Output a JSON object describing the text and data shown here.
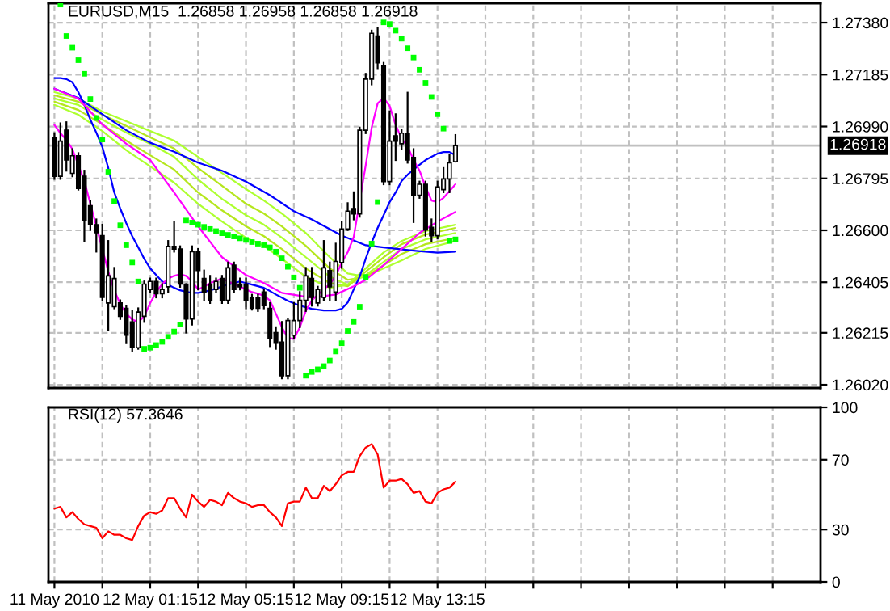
{
  "chart_data": [
    {
      "type": "candlestick",
      "title": "EURUSD,M15  1.26858 1.26958 1.26858 1.26918",
      "x": [
        "2010-05-11T21:15",
        "2010-05-11T21:30",
        "2010-05-11T21:45",
        "2010-05-11T22:00",
        "2010-05-11T22:15",
        "2010-05-11T22:30",
        "2010-05-11T22:45",
        "2010-05-11T23:00",
        "2010-05-11T23:15",
        "2010-05-11T23:30",
        "2010-05-11T23:45",
        "2010-05-12T00:00",
        "2010-05-12T00:15",
        "2010-05-12T00:30",
        "2010-05-12T00:45",
        "2010-05-12T01:00",
        "2010-05-12T01:15",
        "2010-05-12T01:30",
        "2010-05-12T01:45",
        "2010-05-12T02:00",
        "2010-05-12T02:15",
        "2010-05-12T02:30",
        "2010-05-12T02:45",
        "2010-05-12T03:00",
        "2010-05-12T03:15",
        "2010-05-12T03:30",
        "2010-05-12T03:45",
        "2010-05-12T04:00",
        "2010-05-12T04:15",
        "2010-05-12T04:30",
        "2010-05-12T04:45",
        "2010-05-12T05:00",
        "2010-05-12T05:15",
        "2010-05-12T05:30",
        "2010-05-12T05:45",
        "2010-05-12T06:00",
        "2010-05-12T06:15",
        "2010-05-12T06:30",
        "2010-05-12T06:45",
        "2010-05-12T07:00",
        "2010-05-12T07:15",
        "2010-05-12T07:30",
        "2010-05-12T07:45",
        "2010-05-12T08:00",
        "2010-05-12T08:15",
        "2010-05-12T08:30",
        "2010-05-12T08:45",
        "2010-05-12T09:00",
        "2010-05-12T09:15",
        "2010-05-12T09:30",
        "2010-05-12T09:45",
        "2010-05-12T10:00",
        "2010-05-12T10:15",
        "2010-05-12T10:30",
        "2010-05-12T10:45",
        "2010-05-12T11:00",
        "2010-05-12T11:15",
        "2010-05-12T11:30",
        "2010-05-12T11:45",
        "2010-05-12T12:00",
        "2010-05-12T12:15",
        "2010-05-12T12:30",
        "2010-05-12T12:45",
        "2010-05-12T13:00",
        "2010-05-12T13:15",
        "2010-05-12T13:30",
        "2010-05-12T13:45",
        "2010-05-12T14:00"
      ],
      "ohlc": [
        [
          1.26949,
          1.26965,
          1.26793,
          1.26803
        ],
        [
          1.26803,
          1.27002,
          1.26793,
          1.26935
        ],
        [
          1.26976,
          1.27006,
          1.26824,
          1.26864
        ],
        [
          1.26814,
          1.26905,
          1.26803,
          1.2688
        ],
        [
          1.2688,
          1.2689,
          1.26753,
          1.26757
        ],
        [
          1.26803,
          1.26824,
          1.2656,
          1.26637
        ],
        [
          1.26692,
          1.26712,
          1.26601,
          1.26621
        ],
        [
          1.26621,
          1.26641,
          1.2652,
          1.26591
        ],
        [
          1.2658,
          1.26621,
          1.26337,
          1.26348
        ],
        [
          1.26327,
          1.2656,
          1.26226,
          1.26429
        ],
        [
          1.26313,
          1.26459,
          1.26307,
          1.26419
        ],
        [
          1.26327,
          1.26337,
          1.26267,
          1.26277
        ],
        [
          1.26307,
          1.26317,
          1.26176,
          1.26206
        ],
        [
          1.26256,
          1.26297,
          1.26145,
          1.26159
        ],
        [
          1.26159,
          1.26307,
          1.26155,
          1.26293
        ],
        [
          1.26277,
          1.26408,
          1.26256,
          1.26398
        ],
        [
          1.26378,
          1.26419,
          1.26368,
          1.26408
        ],
        [
          1.26408,
          1.26419,
          1.26348,
          1.26362
        ],
        [
          1.26362,
          1.26398,
          1.26348,
          1.26378
        ],
        [
          1.26388,
          1.2656,
          1.26368,
          1.2654
        ],
        [
          1.2654,
          1.26631,
          1.2652,
          1.2653
        ],
        [
          1.2653,
          1.2654,
          1.26388,
          1.26398
        ],
        [
          1.26398,
          1.26398,
          1.26216,
          1.26267
        ],
        [
          1.26267,
          1.2654,
          1.26246,
          1.2652
        ],
        [
          1.2652,
          1.2653,
          1.26378,
          1.26449
        ],
        [
          1.26419,
          1.26449,
          1.26337,
          1.26368
        ],
        [
          1.26398,
          1.26429,
          1.26327,
          1.26337
        ],
        [
          1.26378,
          1.26419,
          1.26368,
          1.26408
        ],
        [
          1.26419,
          1.26429,
          1.26327,
          1.26337
        ],
        [
          1.26337,
          1.26479,
          1.26327,
          1.26459
        ],
        [
          1.26469,
          1.26479,
          1.26368,
          1.26378
        ],
        [
          1.26398,
          1.26419,
          1.26378,
          1.26388
        ],
        [
          1.26398,
          1.26419,
          1.26307,
          1.26337
        ],
        [
          1.26348,
          1.26358,
          1.26302,
          1.26307
        ],
        [
          1.26348,
          1.26358,
          1.26297,
          1.26307
        ],
        [
          1.26368,
          1.26378,
          1.26307,
          1.26317
        ],
        [
          1.26307,
          1.26327,
          1.26165,
          1.26196
        ],
        [
          1.26216,
          1.26236,
          1.26155,
          1.26176
        ],
        [
          1.2618,
          1.26256,
          1.26044,
          1.26054
        ],
        [
          1.26054,
          1.26267,
          1.26044,
          1.26261
        ],
        [
          1.26206,
          1.26327,
          1.26196,
          1.26261
        ],
        [
          1.26261,
          1.26368,
          1.26236,
          1.26337
        ],
        [
          1.26337,
          1.26459,
          1.26297,
          1.26429
        ],
        [
          1.26419,
          1.26459,
          1.26317,
          1.26348
        ],
        [
          1.26327,
          1.26388,
          1.26317,
          1.26378
        ],
        [
          1.26348,
          1.2656,
          1.26337,
          1.26459
        ],
        [
          1.26449,
          1.26479,
          1.26337,
          1.26388
        ],
        [
          1.26368,
          1.2655,
          1.26337,
          1.26483
        ],
        [
          1.26479,
          1.26631,
          1.26459,
          1.26605
        ],
        [
          1.26605,
          1.26702,
          1.26601,
          1.26672
        ],
        [
          1.26682,
          1.26743,
          1.26641,
          1.26662
        ],
        [
          1.26662,
          1.26986,
          1.26651,
          1.26976
        ],
        [
          1.26976,
          1.27188,
          1.26965,
          1.27168
        ],
        [
          1.27168,
          1.2735,
          1.27148,
          1.2734
        ],
        [
          1.2733,
          1.27361,
          1.27209,
          1.27229
        ],
        [
          1.27219,
          1.27229,
          1.26773,
          1.26783
        ],
        [
          1.26783,
          1.27047,
          1.26773,
          1.26935
        ],
        [
          1.26955,
          1.27036,
          1.26864,
          1.26935
        ],
        [
          1.26925,
          1.26976,
          1.26905,
          1.26965
        ],
        [
          1.26965,
          1.27117,
          1.26854,
          1.26864
        ],
        [
          1.26874,
          1.26905,
          1.26631,
          1.26732
        ],
        [
          1.26732,
          1.26783,
          1.26722,
          1.26773
        ],
        [
          1.26773,
          1.26783,
          1.2658,
          1.26601
        ],
        [
          1.26611,
          1.26641,
          1.2656,
          1.2658
        ],
        [
          1.2658,
          1.26783,
          1.2657,
          1.26763
        ],
        [
          1.26753,
          1.26834,
          1.26743,
          1.26793
        ],
        [
          1.26793,
          1.26884,
          1.26743,
          1.26854
        ],
        [
          1.26858,
          1.26958,
          1.26858,
          1.26918
        ]
      ],
      "colors": [
        "#000000",
        "#ffffff",
        "#000000",
        "#ffffff",
        "#000000",
        "#000000",
        "#000000",
        "#000000",
        "#000000",
        "#ffffff",
        "#ffffff",
        "#000000",
        "#000000",
        "#000000",
        "#ffffff",
        "#ffffff",
        "#ffffff",
        "#000000",
        "#ffffff",
        "#ffffff",
        "#000000",
        "#000000",
        "#000000",
        "#ffffff",
        "#000000",
        "#000000",
        "#000000",
        "#ffffff",
        "#000000",
        "#ffffff",
        "#000000",
        "#000000",
        "#000000",
        "#000000",
        "#000000",
        "#000000",
        "#000000",
        "#000000",
        "#000000",
        "#ffffff",
        "#ffffff",
        "#ffffff",
        "#ffffff",
        "#000000",
        "#ffffff",
        "#ffffff",
        "#000000",
        "#ffffff",
        "#ffffff",
        "#ffffff",
        "#000000",
        "#ffffff",
        "#ffffff",
        "#ffffff",
        "#000000",
        "#000000",
        "#ffffff",
        "#000000",
        "#ffffff",
        "#000000",
        "#000000",
        "#ffffff",
        "#000000",
        "#000000",
        "#ffffff",
        "#ffffff",
        "#ffffff",
        "#ffffff"
      ],
      "series": [
        {
          "type": "line",
          "color": "#adff2f",
          "x": [
            "2010-05-11T21:15",
            "2010-05-11T22:15",
            "2010-05-11T23:15",
            "2010-05-12T00:15",
            "2010-05-12T01:15",
            "2010-05-12T02:15",
            "2010-05-12T03:15",
            "2010-05-12T04:15",
            "2010-05-12T05:15",
            "2010-05-12T06:00",
            "2010-05-12T06:45",
            "2010-05-12T07:45",
            "2010-05-12T08:45",
            "2010-05-12T09:30",
            "2010-05-12T10:15",
            "2010-05-12T11:00",
            "2010-05-12T11:45",
            "2010-05-12T12:45",
            "2010-05-12T14:00"
          ],
          "values": [
            1.27119,
            1.27095,
            1.27046,
            1.2701,
            1.26973,
            1.26937,
            1.26876,
            1.26815,
            1.26755,
            1.26712,
            1.26663,
            1.2659,
            1.26499,
            1.26438,
            1.26426,
            1.26457,
            1.26487,
            1.2653,
            1.2656
          ]
        },
        {
          "type": "line",
          "color": "#b5e61d",
          "x": [
            "2010-05-11T21:15",
            "2010-05-11T22:15",
            "2010-05-11T23:15",
            "2010-05-12T00:15",
            "2010-05-12T01:15",
            "2010-05-12T02:15",
            "2010-05-12T03:15",
            "2010-05-12T04:15",
            "2010-05-12T05:15",
            "2010-05-12T06:00",
            "2010-05-12T06:45",
            "2010-05-12T07:45",
            "2010-05-12T08:45",
            "2010-05-12T09:30",
            "2010-05-12T10:15",
            "2010-05-12T11:00",
            "2010-05-12T11:45",
            "2010-05-12T12:45",
            "2010-05-12T14:00"
          ],
          "values": [
            1.27107,
            1.27083,
            1.27034,
            1.26992,
            1.26949,
            1.26907,
            1.26834,
            1.26767,
            1.267,
            1.26663,
            1.26615,
            1.26542,
            1.26457,
            1.26414,
            1.26426,
            1.26469,
            1.26511,
            1.26548,
            1.26572
          ]
        },
        {
          "type": "line",
          "color": "#adff2f",
          "x": [
            "2010-05-11T21:15",
            "2010-05-11T22:15",
            "2010-05-11T23:15",
            "2010-05-12T00:15",
            "2010-05-12T01:15",
            "2010-05-12T02:15",
            "2010-05-12T03:15",
            "2010-05-12T04:15",
            "2010-05-12T05:15",
            "2010-05-12T06:00",
            "2010-05-12T06:45",
            "2010-05-12T07:45",
            "2010-05-12T08:45",
            "2010-05-12T09:30",
            "2010-05-12T10:15",
            "2010-05-12T11:00",
            "2010-05-12T11:45",
            "2010-05-12T12:45",
            "2010-05-12T14:00"
          ],
          "values": [
            1.27095,
            1.27071,
            1.27016,
            1.26967,
            1.26925,
            1.26876,
            1.26791,
            1.26718,
            1.26657,
            1.26621,
            1.26572,
            1.26499,
            1.26426,
            1.26396,
            1.26432,
            1.26481,
            1.2653,
            1.26566,
            1.2659
          ]
        },
        {
          "type": "line",
          "color": "#b5e61d",
          "x": [
            "2010-05-11T21:15",
            "2010-05-11T22:15",
            "2010-05-11T23:15",
            "2010-05-12T00:15",
            "2010-05-12T01:15",
            "2010-05-12T02:15",
            "2010-05-12T03:15",
            "2010-05-12T04:15",
            "2010-05-12T05:15",
            "2010-05-12T06:00",
            "2010-05-12T06:45",
            "2010-05-12T07:45",
            "2010-05-12T08:45",
            "2010-05-12T09:30",
            "2010-05-12T10:15",
            "2010-05-12T11:00",
            "2010-05-12T11:45",
            "2010-05-12T12:45",
            "2010-05-12T14:00"
          ],
          "values": [
            1.27083,
            1.27052,
            1.26998,
            1.26937,
            1.26882,
            1.26828,
            1.26742,
            1.26675,
            1.26615,
            1.26578,
            1.2653,
            1.26457,
            1.26402,
            1.2639,
            1.26445,
            1.26499,
            1.26548,
            1.26584,
            1.26609
          ]
        },
        {
          "type": "line",
          "color": "#adff2f",
          "x": [
            "2010-05-11T21:15",
            "2010-05-11T22:15",
            "2010-05-11T23:15",
            "2010-05-12T00:15",
            "2010-05-12T01:15",
            "2010-05-12T02:15",
            "2010-05-12T03:15",
            "2010-05-12T04:15",
            "2010-05-12T05:15",
            "2010-05-12T06:00",
            "2010-05-12T06:45",
            "2010-05-12T07:45",
            "2010-05-12T08:45",
            "2010-05-12T09:30",
            "2010-05-12T10:15",
            "2010-05-12T11:00",
            "2010-05-12T11:45",
            "2010-05-12T12:45",
            "2010-05-12T14:00"
          ],
          "values": [
            1.27071,
            1.27034,
            1.26973,
            1.26901,
            1.2684,
            1.26779,
            1.267,
            1.26633,
            1.26572,
            1.26542,
            1.26493,
            1.26426,
            1.26384,
            1.26396,
            1.26457,
            1.26517,
            1.2656,
            1.26597,
            1.26621
          ]
        },
        {
          "type": "line",
          "color": "#0000ff",
          "x": [
            "2010-05-11T21:15",
            "2010-05-11T22:15",
            "2010-05-11T23:15",
            "2010-05-12T00:15",
            "2010-05-12T01:15",
            "2010-05-12T02:15",
            "2010-05-12T03:15",
            "2010-05-12T04:15",
            "2010-05-12T05:15",
            "2010-05-12T06:15",
            "2010-05-12T07:15",
            "2010-05-12T08:00",
            "2010-05-12T09:15",
            "2010-05-12T10:15",
            "2010-05-12T11:00",
            "2010-05-12T12:15",
            "2010-05-12T13:15",
            "2010-05-12T14:00"
          ],
          "values": [
            1.27132,
            1.27097,
            1.27036,
            1.26976,
            1.26929,
            1.26895,
            1.26854,
            1.26824,
            1.26783,
            1.26732,
            1.26672,
            1.26641,
            1.2658,
            1.26544,
            1.26536,
            1.26524,
            1.26516,
            1.2652
          ]
        },
        {
          "type": "line",
          "color": "#0000ff",
          "values": [
            1.27172,
            1.27172,
            1.27168,
            1.27156,
            1.27119,
            1.27071,
            1.27016,
            1.26967,
            1.26913,
            1.26834,
            1.26742,
            1.26682,
            1.26627,
            1.26578,
            1.26536,
            1.26493,
            1.26457,
            1.26432,
            1.26408,
            1.26396,
            1.26384,
            1.26375,
            1.26369,
            1.26365,
            1.26365,
            1.26369,
            1.26375,
            1.26381,
            1.2639,
            1.26396,
            1.26402,
            1.26408,
            1.26402,
            1.26396,
            1.2639,
            1.26384,
            1.26372,
            1.26359,
            1.26347,
            1.26335,
            1.26326,
            1.26317,
            1.26311,
            1.26305,
            1.26302,
            1.26299,
            1.26299,
            1.26299,
            1.26305,
            1.26329,
            1.26378,
            1.26426,
            1.26493,
            1.26554,
            1.26609,
            1.26657,
            1.26706,
            1.26742,
            1.26785,
            1.26809,
            1.26828,
            1.26846,
            1.26864,
            1.26876,
            1.26888,
            1.26894,
            1.26894,
            1.26882
          ]
        },
        {
          "type": "line",
          "color": "#ff00ff",
          "x": [
            "2010-05-11T21:15",
            "2010-05-11T22:15",
            "2010-05-11T23:15",
            "2010-05-12T00:15",
            "2010-05-12T01:15",
            "2010-05-12T02:15",
            "2010-05-12T03:15",
            "2010-05-12T04:15",
            "2010-05-12T05:15",
            "2010-05-12T06:00",
            "2010-05-12T06:45",
            "2010-05-12T08:00",
            "2010-05-12T09:00",
            "2010-05-12T09:45",
            "2010-05-12T10:15",
            "2010-05-12T11:00",
            "2010-05-12T11:45",
            "2010-05-12T12:30",
            "2010-05-12T13:15",
            "2010-05-12T14:00"
          ],
          "values": [
            1.27132,
            1.27095,
            1.26998,
            1.26925,
            1.26864,
            1.26742,
            1.26615,
            1.26499,
            1.26432,
            1.26402,
            1.26365,
            1.26347,
            1.26359,
            1.2639,
            1.26414,
            1.26469,
            1.2653,
            1.2659,
            1.26633,
            1.26669
          ]
        },
        {
          "type": "line",
          "color": "#ff00ff",
          "x": [
            "2010-05-11T21:15",
            "2010-05-11T21:30",
            "2010-05-11T21:45",
            "2010-05-11T22:00",
            "2010-05-11T22:15",
            "2010-05-11T22:30",
            "2010-05-11T22:45",
            "2010-05-11T23:00",
            "2010-05-11T23:30",
            "2010-05-11T23:45",
            "2010-05-12T00:00",
            "2010-05-12T00:15",
            "2010-05-12T00:30",
            "2010-05-12T00:45",
            "2010-05-12T01:00",
            "2010-05-12T01:15",
            "2010-05-12T01:30",
            "2010-05-12T01:45",
            "2010-05-12T02:00",
            "2010-05-12T02:15",
            "2010-05-12T02:30",
            "2010-05-12T02:45",
            "2010-05-12T03:00",
            "2010-05-12T03:15",
            "2010-05-12T03:30",
            "2010-05-12T03:45",
            "2010-05-12T04:00",
            "2010-05-12T04:15",
            "2010-05-12T04:30",
            "2010-05-12T04:45",
            "2010-05-12T05:00",
            "2010-05-12T05:15",
            "2010-05-12T05:30",
            "2010-05-12T05:45",
            "2010-05-12T06:00",
            "2010-05-12T06:15",
            "2010-05-12T06:30",
            "2010-05-12T06:45",
            "2010-05-12T07:00",
            "2010-05-12T07:15",
            "2010-05-12T07:30",
            "2010-05-12T07:45",
            "2010-05-12T08:00",
            "2010-05-12T08:15",
            "2010-05-12T08:30",
            "2010-05-12T08:45",
            "2010-05-12T09:00",
            "2010-05-12T09:15",
            "2010-05-12T09:30",
            "2010-05-12T09:45",
            "2010-05-12T10:15",
            "2010-05-12T10:30",
            "2010-05-12T10:45",
            "2010-05-12T11:00",
            "2010-05-12T11:15",
            "2010-05-12T11:30",
            "2010-05-12T11:45",
            "2010-05-12T12:00",
            "2010-05-12T12:15",
            "2010-05-12T12:30",
            "2010-05-12T12:45",
            "2010-05-12T13:00",
            "2010-05-12T13:15",
            "2010-05-12T13:30",
            "2010-05-12T13:45",
            "2010-05-12T14:00"
          ],
          "values": [
            1.26996,
            1.26965,
            1.2694,
            1.26905,
            1.26845,
            1.26785,
            1.267,
            1.26615,
            1.26445,
            1.26375,
            1.26323,
            1.26287,
            1.26265,
            1.26255,
            1.26277,
            1.26327,
            1.26368,
            1.26398,
            1.26419,
            1.26429,
            1.26435,
            1.26429,
            1.26408,
            1.26378,
            1.26388,
            1.26402,
            1.2641,
            1.26419,
            1.26408,
            1.26398,
            1.26388,
            1.26378,
            1.26368,
            1.26362,
            1.26354,
            1.26337,
            1.26287,
            1.26236,
            1.26196,
            1.26192,
            1.26236,
            1.26297,
            1.26337,
            1.26358,
            1.26378,
            1.26398,
            1.26429,
            1.26479,
            1.26518,
            1.26575,
            1.26844,
            1.26986,
            1.27077,
            1.27097,
            1.27067,
            1.26996,
            1.26945,
            1.26915,
            1.26864,
            1.26824,
            1.26763,
            1.26712,
            1.26706,
            1.26722,
            1.26747,
            1.26773
          ]
        },
        {
          "type": "scatter",
          "color": "#00ff00",
          "marker": "square",
          "values": [
            null,
            1.27448,
            1.2733,
            1.27286,
            1.27239,
            1.27188,
            1.27093,
            1.27022,
            1.26941,
            1.2682,
            1.2671,
            1.26619,
            1.26544,
            1.26479,
            1.26408,
            1.26155,
            1.26159,
            1.26169,
            1.26181,
            1.262,
            1.2622,
            1.26246,
            1.26637,
            1.26629,
            1.26621,
            1.26613,
            1.26605,
            1.26597,
            1.26589,
            1.26583,
            1.26577,
            1.2657,
            1.26564,
            1.26556,
            1.2655,
            1.26544,
            1.26536,
            1.2652,
            1.26495,
            1.26463,
            1.26423,
            1.26384,
            1.26054,
            1.26068,
            1.26078,
            1.2609,
            1.26111,
            1.26145,
            1.26176,
            1.26222,
            1.26256,
            1.26313,
            1.26425,
            1.2655,
            1.26706,
            1.27381,
            1.27375,
            1.2735,
            1.2732,
            1.27284,
            1.27249,
            1.27203,
            1.27154,
            1.27101,
            1.27036,
            1.26982,
            1.2656,
            1.26566
          ]
        }
      ],
      "xlim": [
        "2010-05-11T21:00",
        "2010-05-13T05:15"
      ],
      "xticks": [
        {
          "value": "2010-05-11T21:15",
          "label": null
        },
        {
          "value": "2010-05-11T23:15",
          "label": null
        },
        {
          "value": "2010-05-12T01:15",
          "label": null
        },
        {
          "value": "2010-05-12T03:15",
          "label": null
        },
        {
          "value": "2010-05-12T05:15",
          "label": null
        },
        {
          "value": "2010-05-12T07:15",
          "label": null
        },
        {
          "value": "2010-05-12T09:15",
          "label": null
        },
        {
          "value": "2010-05-12T11:15",
          "label": null
        },
        {
          "value": "2010-05-12T13:15",
          "label": null
        },
        {
          "value": "2010-05-12T15:15",
          "label": null
        },
        {
          "value": "2010-05-12T17:15",
          "label": null
        },
        {
          "value": "2010-05-12T19:15",
          "label": null
        },
        {
          "value": "2010-05-12T21:15",
          "label": null
        },
        {
          "value": "2010-05-12T23:15",
          "label": null
        },
        {
          "value": "2010-05-13T01:15",
          "label": null
        },
        {
          "value": "2010-05-13T03:15",
          "label": null
        }
      ],
      "ylim": [
        1.26008,
        1.27453
      ],
      "yticks": [
        {
          "value": 1.2738,
          "label": "1.27380"
        },
        1.27185,
        {
          "value": 1.2699,
          "label": "1.26990"
        },
        1.26795,
        {
          "value": 1.266,
          "label": "1.26600"
        },
        1.26405,
        1.26215,
        {
          "value": 1.2602,
          "label": "1.26020"
        }
      ],
      "ref_lines": [
        {
          "axis": "y",
          "value": 1.26918,
          "label": "1.26918",
          "color": "#c0c0c0"
        }
      ],
      "grid": true,
      "tick_labels": "y"
    },
    {
      "type": "line",
      "title": "RSI(12) 57.3646",
      "x": [
        "2010-05-11T21:15",
        "2010-05-11T21:30",
        "2010-05-11T21:45",
        "2010-05-11T22:00",
        "2010-05-11T22:15",
        "2010-05-11T22:30",
        "2010-05-11T22:45",
        "2010-05-11T23:00",
        "2010-05-11T23:15",
        "2010-05-11T23:30",
        "2010-05-11T23:45",
        "2010-05-12T00:00",
        "2010-05-12T00:15",
        "2010-05-12T00:30",
        "2010-05-12T00:45",
        "2010-05-12T01:00",
        "2010-05-12T01:15",
        "2010-05-12T01:30",
        "2010-05-12T01:45",
        "2010-05-12T02:00",
        "2010-05-12T02:15",
        "2010-05-12T02:30",
        "2010-05-12T02:45",
        "2010-05-12T03:00",
        "2010-05-12T03:15",
        "2010-05-12T03:30",
        "2010-05-12T03:45",
        "2010-05-12T04:00",
        "2010-05-12T04:15",
        "2010-05-12T04:30",
        "2010-05-12T04:45",
        "2010-05-12T05:00",
        "2010-05-12T05:15",
        "2010-05-12T05:30",
        "2010-05-12T05:45",
        "2010-05-12T06:00",
        "2010-05-12T06:15",
        "2010-05-12T06:30",
        "2010-05-12T06:45",
        "2010-05-12T07:00",
        "2010-05-12T07:15",
        "2010-05-12T07:30",
        "2010-05-12T07:45",
        "2010-05-12T08:00",
        "2010-05-12T08:15",
        "2010-05-12T08:30",
        "2010-05-12T08:45",
        "2010-05-12T09:00",
        "2010-05-12T09:15",
        "2010-05-12T09:30",
        "2010-05-12T09:45",
        "2010-05-12T10:00",
        "2010-05-12T10:15",
        "2010-05-12T10:30",
        "2010-05-12T10:45",
        "2010-05-12T11:00",
        "2010-05-12T11:15",
        "2010-05-12T11:30",
        "2010-05-12T11:45",
        "2010-05-12T12:00",
        "2010-05-12T12:15",
        "2010-05-12T12:30",
        "2010-05-12T12:45",
        "2010-05-12T13:00",
        "2010-05-12T13:15",
        "2010-05-12T13:30",
        "2010-05-12T13:45",
        "2010-05-12T14:00"
      ],
      "series": [
        {
          "color": "#ff0000",
          "values": [
            42,
            43,
            37,
            40,
            36,
            33,
            32,
            31,
            25,
            29,
            27,
            27,
            25,
            24,
            32,
            38,
            40,
            39,
            41,
            48,
            48,
            42,
            37,
            50,
            46,
            43,
            47,
            46,
            44,
            51,
            48,
            46,
            45,
            43,
            44,
            44,
            40,
            37,
            32,
            45,
            46,
            46,
            54,
            48,
            48,
            55,
            52,
            56,
            61,
            63,
            63,
            72,
            77,
            79,
            73,
            54,
            58,
            58,
            59,
            56,
            51,
            52,
            46,
            45,
            51,
            53,
            54,
            57.3646
          ]
        }
      ],
      "xlim": [
        "2010-05-11T21:00",
        "2010-05-13T05:15"
      ],
      "xticks": [
        {
          "value": "2010-05-11T21:15",
          "label": "11 May 2010"
        },
        {
          "value": "2010-05-11T23:15",
          "label": null
        },
        {
          "value": "2010-05-12T01:15",
          "label": "12 May 01:15"
        },
        {
          "value": "2010-05-12T03:15",
          "label": null
        },
        {
          "value": "2010-05-12T05:15",
          "label": "12 May 05:15"
        },
        {
          "value": "2010-05-12T07:15",
          "label": null
        },
        {
          "value": "2010-05-12T09:15",
          "label": "12 May 09:15"
        },
        {
          "value": "2010-05-12T11:15",
          "label": null
        },
        {
          "value": "2010-05-12T13:15",
          "label": "12 May 13:15"
        },
        {
          "value": "2010-05-12T15:15",
          "label": null
        },
        {
          "value": "2010-05-12T17:15",
          "label": null
        },
        {
          "value": "2010-05-12T19:15",
          "label": null
        },
        {
          "value": "2010-05-12T21:15",
          "label": null
        },
        {
          "value": "2010-05-12T23:15",
          "label": null
        },
        {
          "value": "2010-05-13T01:15",
          "label": null
        },
        {
          "value": "2010-05-13T03:15",
          "label": null
        }
      ],
      "ylim": [
        0,
        100
      ],
      "yticks": [
        0,
        30,
        70,
        100
      ],
      "grid": true
    }
  ]
}
